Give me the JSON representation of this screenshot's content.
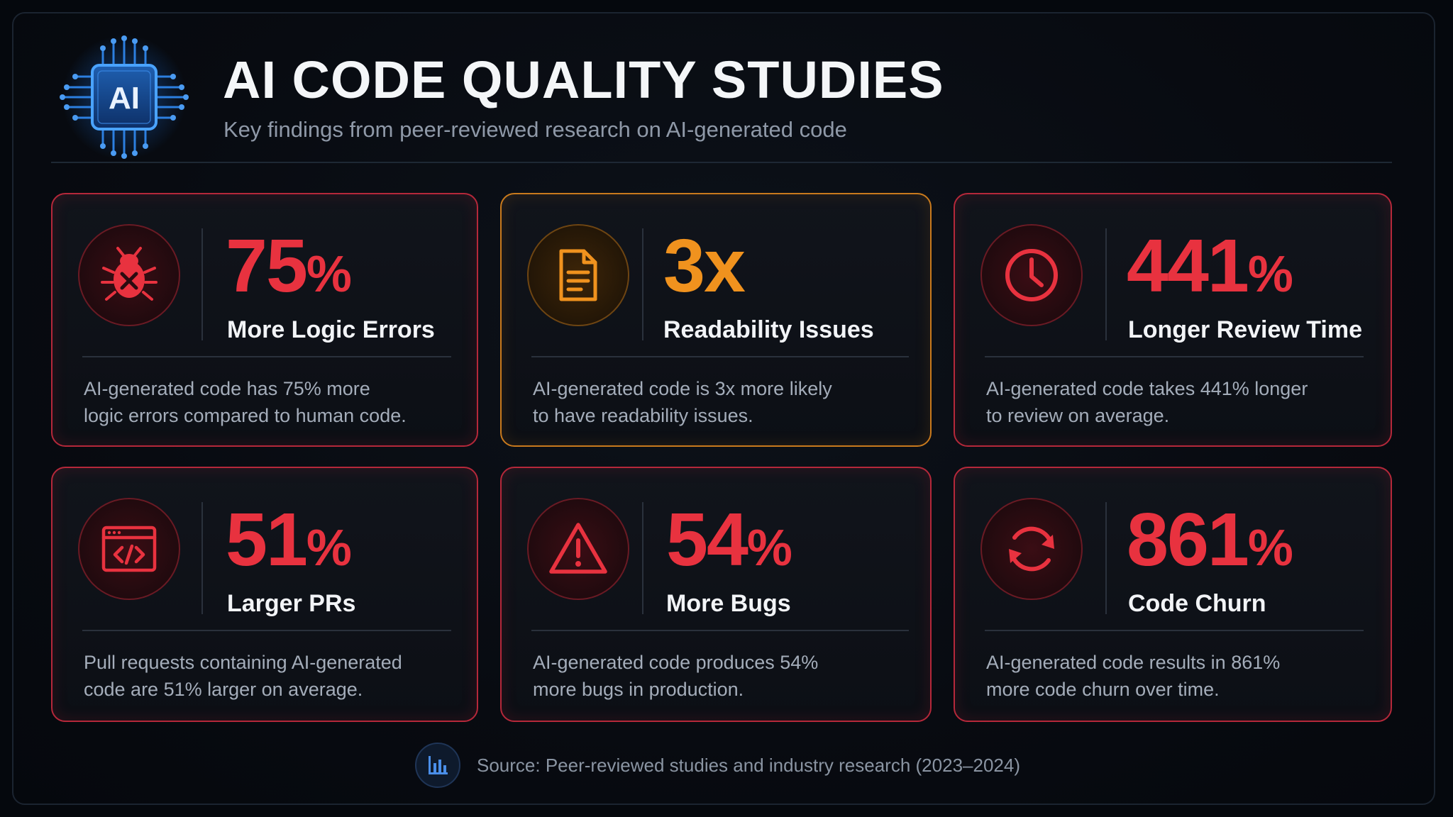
{
  "header": {
    "title": "AI CODE QUALITY STUDIES",
    "subtitle": "Key findings from peer-reviewed research on AI-generated code",
    "logo_text": "AI",
    "logo_icon": "ai-chip-icon"
  },
  "cards": [
    {
      "icon": "bug-icon",
      "value": "75",
      "unit": "%",
      "label": "More Logic Errors",
      "desc_line1": "AI-generated code has 75% more",
      "desc_line2": "logic errors compared to human code.",
      "accent": "#e8323f"
    },
    {
      "icon": "document-icon",
      "value": "3x",
      "unit": "",
      "label": "Readability Issues",
      "desc_line1": "AI-generated code is 3x more likely",
      "desc_line2": "to have readability issues.",
      "accent": "#f0921e"
    },
    {
      "icon": "clock-icon",
      "value": "441",
      "unit": "%",
      "label": "Longer Review Time",
      "desc_line1": "AI-generated code takes 441% longer",
      "desc_line2": "to review on average.",
      "accent": "#e8323f"
    },
    {
      "icon": "code-window-icon",
      "value": "51",
      "unit": "%",
      "label": "Larger PRs",
      "desc_line1": "Pull requests containing AI-generated",
      "desc_line2": "code are 51% larger on average.",
      "accent": "#e8323f"
    },
    {
      "icon": "warning-icon",
      "value": "54",
      "unit": "%",
      "label": "More Bugs",
      "desc_line1": "AI-generated code produces 54%",
      "desc_line2": "more bugs in production.",
      "accent": "#e8323f"
    },
    {
      "icon": "refresh-icon",
      "value": "861",
      "unit": "%",
      "label": "Code Churn",
      "desc_line1": "AI-generated code results in 861%",
      "desc_line2": "more code churn over time.",
      "accent": "#e8323f"
    }
  ],
  "footer": {
    "icon": "bar-chart-icon",
    "source": "Source: Peer-reviewed studies and industry research (2023–2024)"
  }
}
